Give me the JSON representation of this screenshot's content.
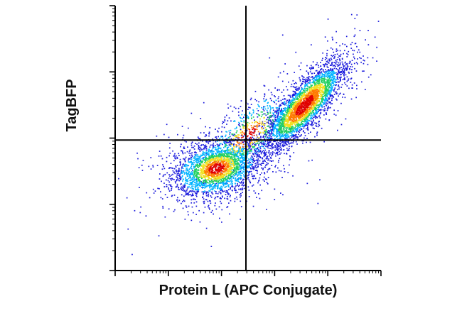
{
  "chart_data": {
    "type": "scatter",
    "subtype": "flow-cytometry-density-dot-plot",
    "xlabel": "Protein L (APC Conjugate)",
    "ylabel": "TagBFP",
    "x_scale": "log",
    "y_scale": "log",
    "tick_labels_shown": false,
    "xlim_decades": [
      0,
      5
    ],
    "ylim_decades": [
      0,
      4
    ],
    "quadrant_gate": {
      "x_decade": 2.46,
      "y_decade": 1.97
    },
    "grid": false,
    "density_colors": [
      "#1a1adc",
      "#00b4ff",
      "#20d060",
      "#f0e020",
      "#ff7a00",
      "#e00000"
    ],
    "populations": [
      {
        "name": "",
        "center_x": 1.9,
        "center_y": 1.55,
        "spread_x": 0.42,
        "spread_y": 0.22,
        "corr": 0.3,
        "count": 2600
      },
      {
        "name": "",
        "center_x": 3.55,
        "center_y": 2.5,
        "spread_x": 0.38,
        "spread_y": 0.33,
        "corr": 0.82,
        "count": 3200
      },
      {
        "name": "",
        "center_x": 2.5,
        "center_y": 2.05,
        "spread_x": 0.45,
        "spread_y": 0.35,
        "corr": 0.7,
        "count": 700
      }
    ]
  }
}
